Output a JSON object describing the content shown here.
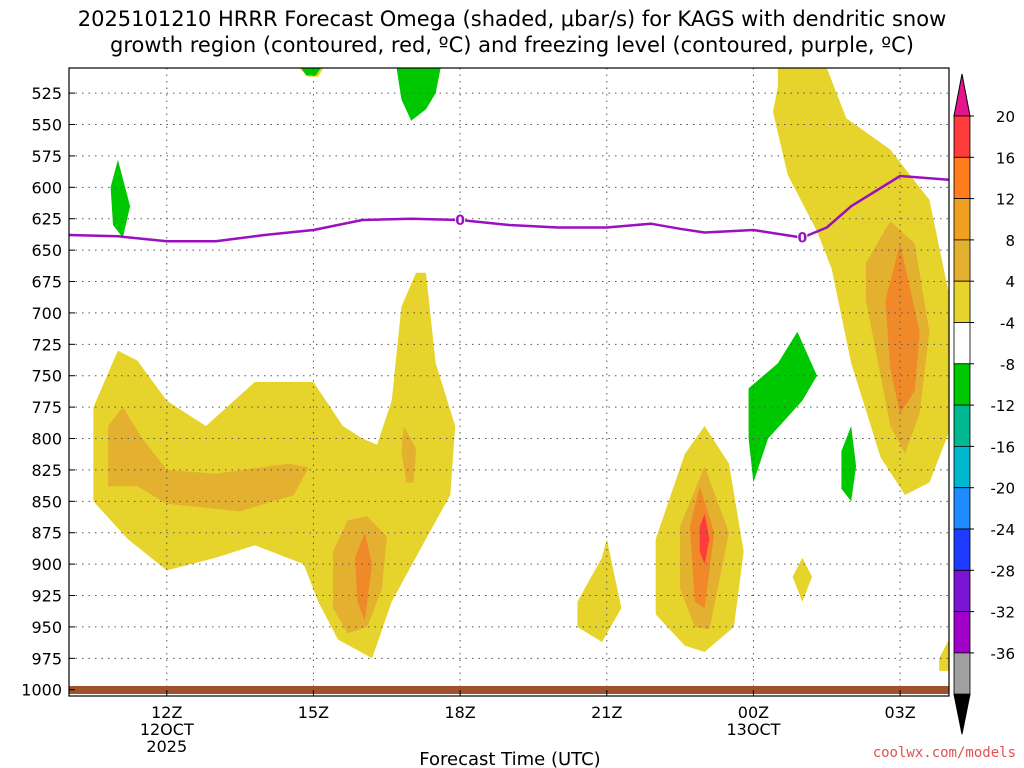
{
  "chart_data": {
    "type": "contour",
    "title_lines": [
      "2025101210 HRRR Forecast Omega (shaded, μbar/s) for KAGS with dendritic snow",
      "growth region (contoured, red, ºC) and freezing level (contoured, purple, ºC)"
    ],
    "xlabel": "Forecast Time (UTC)",
    "credit": "coolwx.com/models",
    "x_hours_range": [
      10,
      28
    ],
    "y_hpa_range": [
      505,
      1005
    ],
    "x_ticks": [
      {
        "hour": 12,
        "lines": [
          "12Z",
          "12OCT",
          "2025"
        ]
      },
      {
        "hour": 15,
        "lines": [
          "15Z"
        ]
      },
      {
        "hour": 18,
        "lines": [
          "18Z"
        ]
      },
      {
        "hour": 21,
        "lines": [
          "21Z"
        ]
      },
      {
        "hour": 24,
        "lines": [
          "00Z",
          "13OCT"
        ]
      },
      {
        "hour": 27,
        "lines": [
          "03Z"
        ]
      }
    ],
    "y_ticks": [
      525,
      550,
      575,
      600,
      625,
      650,
      675,
      700,
      725,
      750,
      775,
      800,
      825,
      850,
      875,
      900,
      925,
      950,
      975,
      1000
    ],
    "colorbar": {
      "labels": [
        "20",
        "16",
        "12",
        "8",
        "4",
        "-4",
        "-8",
        "-12",
        "-16",
        "-20",
        "-24",
        "-28",
        "-32",
        "-36"
      ],
      "colors": [
        "#ff3c3c",
        "#ff7d1f",
        "#f0a020",
        "#e4b030",
        "#e6d42c",
        "#ffffff",
        "#00c800",
        "#00b890",
        "#00b8d0",
        "#1e8cff",
        "#1e3cff",
        "#7814d2",
        "#a000c8",
        "#a0a0a0"
      ],
      "top_arrow_color": "#e6148c",
      "bottom_arrow_color": "#000000"
    },
    "freezing_level": {
      "label": "0",
      "label_at_hours": [
        18,
        25
      ],
      "points": [
        [
          10,
          638
        ],
        [
          11,
          639
        ],
        [
          12,
          643
        ],
        [
          13,
          643
        ],
        [
          14,
          638
        ],
        [
          15,
          634
        ],
        [
          16,
          626
        ],
        [
          17,
          625
        ],
        [
          18,
          626
        ],
        [
          19,
          630
        ],
        [
          20,
          632
        ],
        [
          21,
          632
        ],
        [
          21.9,
          629
        ],
        [
          22.5,
          633
        ],
        [
          23,
          636
        ],
        [
          24,
          634
        ],
        [
          25,
          640
        ],
        [
          25.5,
          632
        ],
        [
          26,
          615
        ],
        [
          27,
          591
        ],
        [
          28,
          594
        ]
      ]
    },
    "shaded_regions": [
      {
        "name": "yellow-4-region",
        "level": 4,
        "points": [
          [
            14.7,
            505
          ],
          [
            15.2,
            505
          ],
          [
            15.1,
            512
          ],
          [
            14.9,
            512
          ]
        ]
      },
      {
        "name": "green-4-region",
        "level": -4,
        "points": [
          [
            14.75,
            505
          ],
          [
            15.15,
            505
          ],
          [
            15.05,
            511
          ],
          [
            14.85,
            511
          ]
        ]
      },
      {
        "name": "green-region-top",
        "level": -4,
        "points": [
          [
            16.7,
            505
          ],
          [
            17.6,
            505
          ],
          [
            17.5,
            525
          ],
          [
            17.3,
            538
          ],
          [
            17.0,
            547
          ],
          [
            16.8,
            530
          ]
        ]
      },
      {
        "name": "green-region-left",
        "level": -4,
        "points": [
          [
            11.0,
            578
          ],
          [
            11.25,
            615
          ],
          [
            11.1,
            640
          ],
          [
            10.9,
            630
          ],
          [
            10.85,
            600
          ]
        ]
      },
      {
        "name": "yellow-blob-main",
        "level": 4,
        "points": [
          [
            10.5,
            775
          ],
          [
            11.0,
            730
          ],
          [
            11.4,
            738
          ],
          [
            12.0,
            770
          ],
          [
            12.8,
            790
          ],
          [
            13.8,
            755
          ],
          [
            15.0,
            755
          ],
          [
            15.6,
            790
          ],
          [
            16.0,
            800
          ],
          [
            16.3,
            805
          ],
          [
            16.6,
            770
          ],
          [
            16.8,
            695
          ],
          [
            17.1,
            668
          ],
          [
            17.3,
            668
          ],
          [
            17.5,
            740
          ],
          [
            17.9,
            790
          ],
          [
            17.8,
            845
          ],
          [
            17.3,
            880
          ],
          [
            16.6,
            930
          ],
          [
            16.2,
            975
          ],
          [
            15.5,
            960
          ],
          [
            15.1,
            930
          ],
          [
            14.8,
            900
          ],
          [
            13.8,
            885
          ],
          [
            13.0,
            895
          ],
          [
            12.0,
            905
          ],
          [
            11.2,
            880
          ],
          [
            10.5,
            850
          ],
          [
            10.5,
            800
          ]
        ]
      },
      {
        "name": "orange-blob-left",
        "level": 8,
        "points": [
          [
            10.8,
            790
          ],
          [
            11.1,
            775
          ],
          [
            11.5,
            800
          ],
          [
            12.0,
            825
          ],
          [
            13.0,
            828
          ],
          [
            14.5,
            820
          ],
          [
            14.9,
            823
          ],
          [
            14.6,
            845
          ],
          [
            13.5,
            858
          ],
          [
            12.0,
            852
          ],
          [
            11.4,
            838
          ],
          [
            10.8,
            838
          ]
        ]
      },
      {
        "name": "orange-blob-mid",
        "level": 8,
        "points": [
          [
            16.85,
            790
          ],
          [
            17.1,
            808
          ],
          [
            17.05,
            835
          ],
          [
            16.9,
            835
          ],
          [
            16.8,
            810
          ]
        ]
      },
      {
        "name": "orange-blob-low",
        "level": 8,
        "points": [
          [
            15.4,
            890
          ],
          [
            15.7,
            865
          ],
          [
            16.1,
            862
          ],
          [
            16.5,
            878
          ],
          [
            16.4,
            920
          ],
          [
            16.1,
            950
          ],
          [
            15.7,
            955
          ],
          [
            15.4,
            935
          ]
        ]
      },
      {
        "name": "darkorange-blob-low",
        "level": 12,
        "points": [
          [
            15.85,
            895
          ],
          [
            16.05,
            875
          ],
          [
            16.2,
            900
          ],
          [
            16.05,
            945
          ],
          [
            15.9,
            930
          ]
        ]
      },
      {
        "name": "yellow-small-21z",
        "level": 4,
        "points": [
          [
            20.4,
            930
          ],
          [
            20.9,
            895
          ],
          [
            21.0,
            880
          ],
          [
            21.3,
            935
          ],
          [
            20.9,
            962
          ],
          [
            20.4,
            950
          ]
        ]
      },
      {
        "name": "yellow-blob-2230",
        "level": 4,
        "points": [
          [
            22.0,
            880
          ],
          [
            22.6,
            812
          ],
          [
            23.0,
            790
          ],
          [
            23.5,
            820
          ],
          [
            23.8,
            890
          ],
          [
            23.6,
            950
          ],
          [
            23.0,
            970
          ],
          [
            22.6,
            965
          ],
          [
            22.0,
            940
          ]
        ]
      },
      {
        "name": "orange-blob-2230",
        "level": 8,
        "points": [
          [
            22.5,
            870
          ],
          [
            23.0,
            822
          ],
          [
            23.5,
            875
          ],
          [
            23.1,
            952
          ],
          [
            22.8,
            950
          ],
          [
            22.5,
            920
          ]
        ]
      },
      {
        "name": "darkorange-blob-2230",
        "level": 12,
        "points": [
          [
            22.7,
            870
          ],
          [
            22.9,
            838
          ],
          [
            23.2,
            875
          ],
          [
            23.0,
            935
          ],
          [
            22.8,
            930
          ]
        ]
      },
      {
        "name": "red-blob-2230",
        "level": 16,
        "points": [
          [
            22.9,
            870
          ],
          [
            23.0,
            860
          ],
          [
            23.1,
            880
          ],
          [
            23.0,
            900
          ],
          [
            22.9,
            890
          ]
        ]
      },
      {
        "name": "yellow-large-right",
        "level": 4,
        "points": [
          [
            24.5,
            505
          ],
          [
            25.5,
            505
          ],
          [
            25.9,
            545
          ],
          [
            26.8,
            570
          ],
          [
            27.6,
            610
          ],
          [
            28.0,
            685
          ],
          [
            28.0,
            795
          ],
          [
            27.6,
            835
          ],
          [
            27.1,
            845
          ],
          [
            26.6,
            815
          ],
          [
            26.0,
            740
          ],
          [
            25.6,
            665
          ],
          [
            25.3,
            635
          ],
          [
            24.7,
            590
          ],
          [
            24.4,
            540
          ],
          [
            24.5,
            520
          ]
        ]
      },
      {
        "name": "orange-large-right",
        "level": 8,
        "points": [
          [
            26.3,
            660
          ],
          [
            26.8,
            627
          ],
          [
            27.3,
            645
          ],
          [
            27.6,
            715
          ],
          [
            27.4,
            780
          ],
          [
            27.1,
            812
          ],
          [
            26.8,
            790
          ],
          [
            26.5,
            730
          ],
          [
            26.3,
            690
          ]
        ]
      },
      {
        "name": "darkorange-large-right",
        "level": 12,
        "points": [
          [
            26.7,
            690
          ],
          [
            27.0,
            645
          ],
          [
            27.4,
            715
          ],
          [
            27.3,
            762
          ],
          [
            27.0,
            780
          ],
          [
            26.8,
            745
          ]
        ]
      },
      {
        "name": "yellow-bottom-right",
        "level": 4,
        "points": [
          [
            27.8,
            975
          ],
          [
            28.0,
            960
          ],
          [
            28.0,
            985
          ],
          [
            27.8,
            985
          ]
        ]
      },
      {
        "name": "green-region-00z",
        "level": -4,
        "points": [
          [
            23.9,
            760
          ],
          [
            24.5,
            740
          ],
          [
            24.9,
            715
          ],
          [
            25.3,
            750
          ],
          [
            25.0,
            770
          ],
          [
            24.3,
            800
          ],
          [
            24.0,
            835
          ],
          [
            23.9,
            800
          ]
        ]
      },
      {
        "name": "green-small-01z",
        "level": -4,
        "points": [
          [
            25.8,
            810
          ],
          [
            26.0,
            790
          ],
          [
            26.1,
            822
          ],
          [
            26.0,
            850
          ],
          [
            25.8,
            840
          ]
        ]
      },
      {
        "name": "yellow-small-01z",
        "level": 4,
        "points": [
          [
            24.8,
            910
          ],
          [
            25.0,
            895
          ],
          [
            25.2,
            910
          ],
          [
            25.0,
            930
          ]
        ]
      }
    ]
  }
}
